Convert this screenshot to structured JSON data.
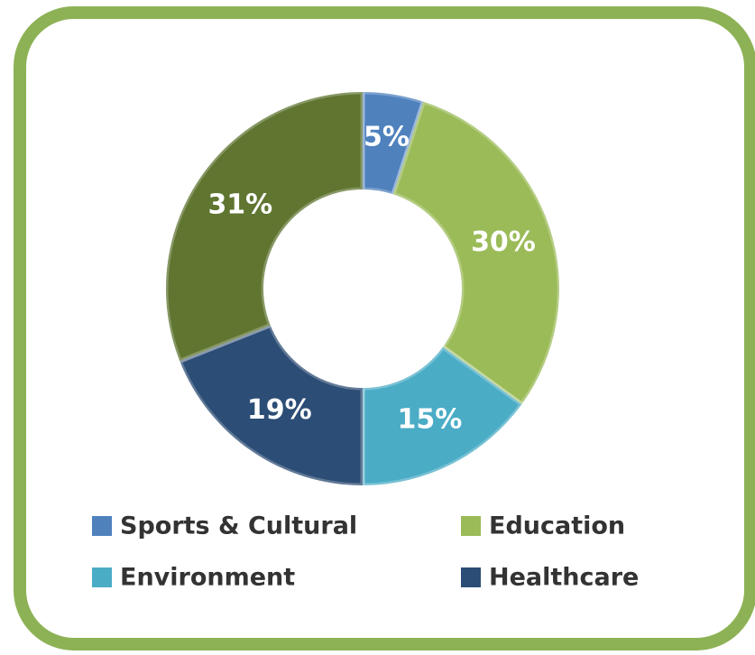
{
  "chart_data": {
    "type": "donut",
    "categories": [
      "Sports & Cultural",
      "Education",
      "Environment",
      "Healthcare",
      null
    ],
    "values": [
      5,
      30,
      15,
      19,
      31
    ],
    "value_labels": [
      "5%",
      "30%",
      "15%",
      "19%",
      "31%"
    ],
    "colors": [
      "#4f81bd",
      "#9bbb59",
      "#4bacc6",
      "#2c4d75",
      "#5f7530"
    ],
    "legend": "bottom"
  }
}
